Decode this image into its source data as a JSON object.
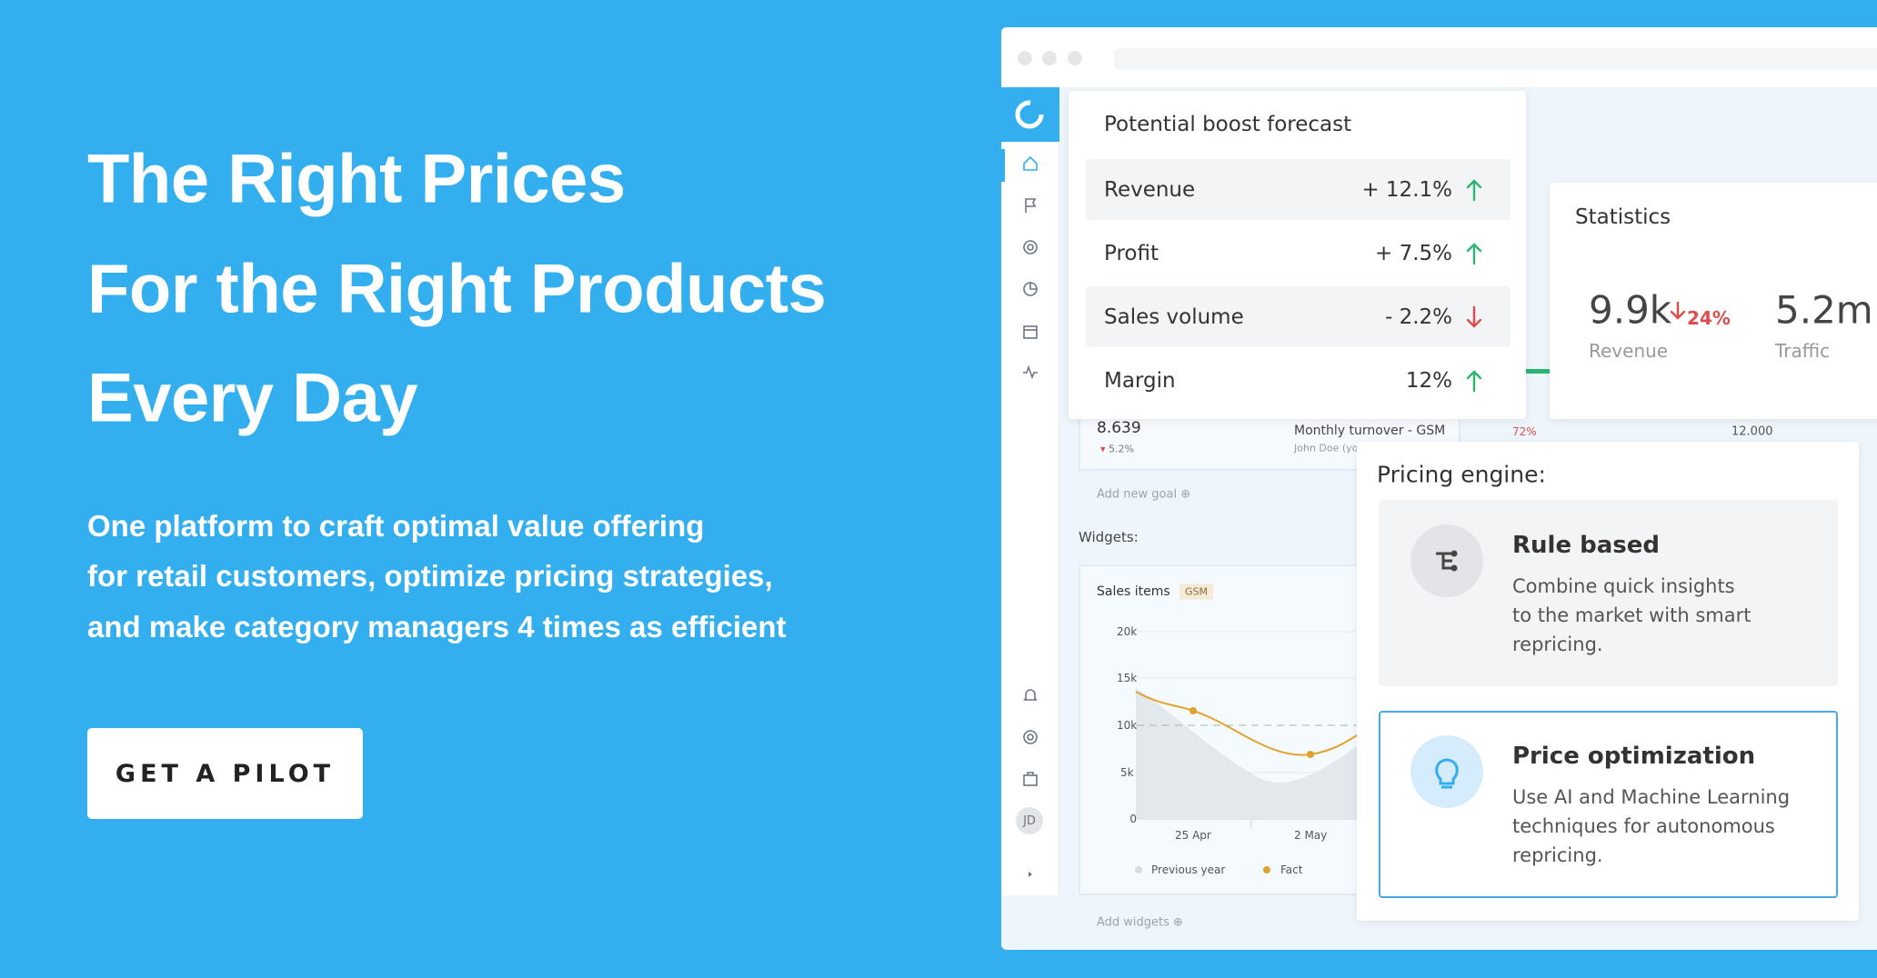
{
  "hero": {
    "title_lines": [
      "The Right Prices",
      "For the Right Products",
      "Every Day"
    ],
    "description_lines": [
      "One platform to craft optimal value offering",
      "for retail customers, optimize pricing strategies,",
      "and make category managers 4 times as efficient"
    ],
    "cta": "GET A PILOT"
  },
  "dashboard": {
    "avatar": "JD",
    "goal": {
      "value": "8.639",
      "change": "5.2%",
      "name": "Monthly turnover - GSM",
      "owner": "John Doe (you",
      "progress": "72%",
      "target": "12.000"
    },
    "add_goal": "Add new goal",
    "widgets_label": "Widgets:",
    "widget": {
      "title": "Sales items",
      "tag": "GSM",
      "yticks": [
        "20k",
        "15k",
        "10k",
        "5k",
        "0"
      ],
      "xticks": [
        "25 Apr",
        "2 May"
      ],
      "legend": [
        "Previous year",
        "Fact"
      ]
    },
    "add_widgets": "Add widgets"
  },
  "forecast": {
    "title": "Potential boost forecast",
    "rows": [
      {
        "label": "Revenue",
        "value": "+ 12.1%",
        "trend": "up"
      },
      {
        "label": "Profit",
        "value": "+ 7.5%",
        "trend": "up"
      },
      {
        "label": "Sales volume",
        "value": "- 2.2%",
        "trend": "down"
      },
      {
        "label": "Margin",
        "value": "12%",
        "trend": "up"
      }
    ]
  },
  "statistics": {
    "title": "Statistics",
    "items": [
      {
        "value": "9.9k",
        "change": "24%",
        "trend": "down",
        "label": "Revenue"
      },
      {
        "value": "5.2m",
        "label": "Traffic"
      }
    ]
  },
  "pricing_engine": {
    "title": "Pricing engine:",
    "options": [
      {
        "title": "Rule based",
        "description": [
          "Combine quick insights",
          "to the market with smart",
          "repricing."
        ]
      },
      {
        "title": "Price optimization",
        "description": [
          "Use AI and Machine Learning",
          "techniques for autonomous",
          "repricing."
        ]
      }
    ]
  }
}
